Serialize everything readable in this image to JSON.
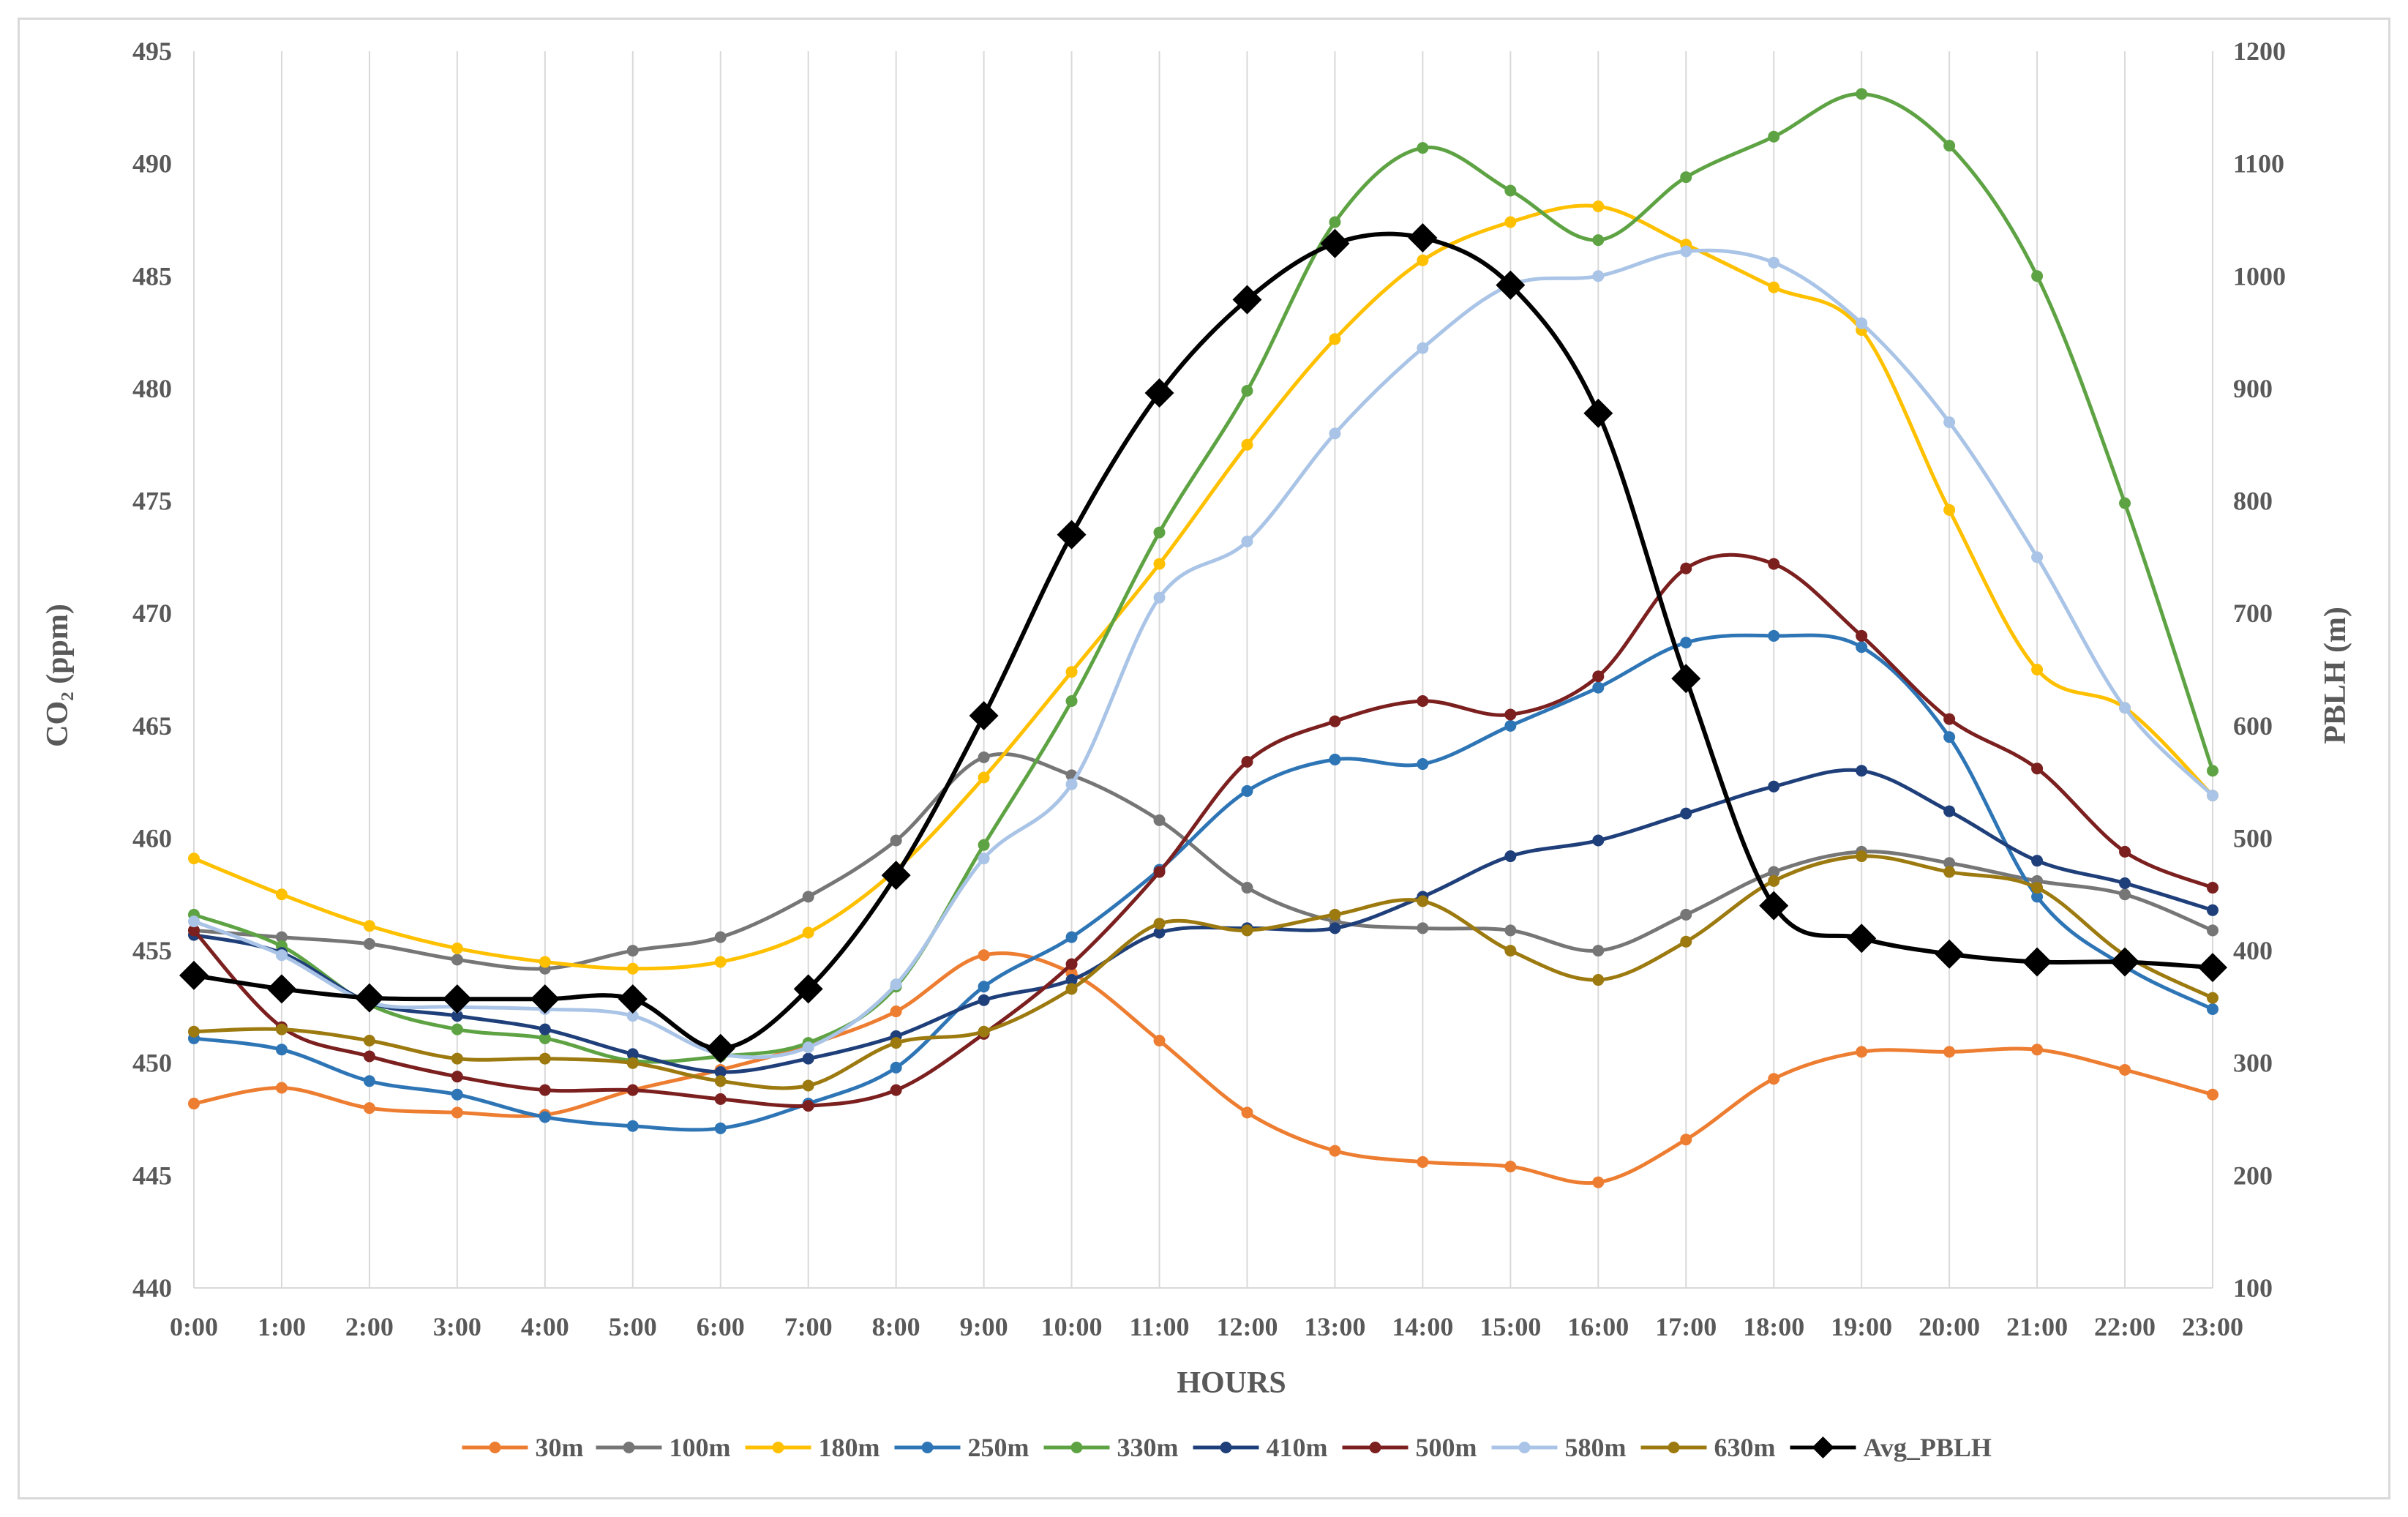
{
  "chart_data": {
    "type": "line",
    "title": "",
    "xlabel": "HOURS",
    "ylabel": "CO₂ (ppm)",
    "y2label": "PBLH (m)",
    "categories": [
      "0:00",
      "1:00",
      "2:00",
      "3:00",
      "4:00",
      "5:00",
      "6:00",
      "7:00",
      "8:00",
      "9:00",
      "10:00",
      "11:00",
      "12:00",
      "13:00",
      "14:00",
      "15:00",
      "16:00",
      "17:00",
      "18:00",
      "19:00",
      "20:00",
      "21:00",
      "22:00",
      "23:00"
    ],
    "ylim": [
      440,
      495
    ],
    "yticks": [
      440,
      445,
      450,
      455,
      460,
      465,
      470,
      475,
      480,
      485,
      490,
      495
    ],
    "y2lim": [
      100,
      1200
    ],
    "y2ticks": [
      100,
      200,
      300,
      400,
      500,
      600,
      700,
      800,
      900,
      1000,
      1100,
      1200
    ],
    "grid": "vertical",
    "legend_position": "bottom",
    "series": [
      {
        "name": "30m",
        "axis": "left",
        "color": "#ed7d31",
        "marker": "circle",
        "values": [
          448.2,
          448.9,
          448.0,
          447.8,
          447.7,
          448.8,
          449.7,
          450.8,
          452.3,
          454.8,
          454.0,
          451.0,
          447.8,
          446.1,
          445.6,
          445.4,
          444.7,
          446.6,
          449.3,
          450.5,
          450.5,
          450.6,
          449.7,
          448.6
        ]
      },
      {
        "name": "100m",
        "axis": "left",
        "color": "#767676",
        "marker": "circle",
        "values": [
          455.9,
          455.6,
          455.3,
          454.6,
          454.2,
          455.0,
          455.6,
          457.4,
          459.9,
          463.6,
          462.8,
          460.8,
          457.8,
          456.3,
          456.0,
          455.9,
          455.0,
          456.6,
          458.5,
          459.4,
          458.9,
          458.1,
          457.5,
          455.9
        ]
      },
      {
        "name": "180m",
        "axis": "left",
        "color": "#ffc000",
        "marker": "circle",
        "values": [
          459.1,
          457.5,
          456.1,
          455.1,
          454.5,
          454.2,
          454.5,
          455.8,
          458.6,
          462.7,
          467.4,
          472.2,
          477.5,
          482.2,
          485.7,
          487.4,
          488.1,
          486.4,
          484.5,
          482.6,
          474.6,
          467.5,
          465.8,
          461.9
        ]
      },
      {
        "name": "250m",
        "axis": "left",
        "color": "#2e75b6",
        "marker": "circle",
        "values": [
          451.1,
          450.6,
          449.2,
          448.6,
          447.6,
          447.2,
          447.1,
          448.2,
          449.8,
          453.4,
          455.6,
          458.6,
          462.1,
          463.5,
          463.3,
          465.0,
          466.7,
          468.7,
          469.0,
          468.5,
          464.5,
          457.4,
          454.3,
          452.4
        ]
      },
      {
        "name": "330m",
        "axis": "left",
        "color": "#5ea343",
        "marker": "circle",
        "values": [
          456.6,
          455.2,
          452.6,
          451.5,
          451.1,
          450.1,
          450.3,
          450.9,
          453.4,
          459.7,
          466.1,
          473.6,
          479.9,
          487.4,
          490.7,
          488.8,
          486.6,
          489.4,
          491.2,
          493.1,
          490.8,
          485.0,
          474.9,
          463.0
        ]
      },
      {
        "name": "410m",
        "axis": "left",
        "color": "#1f3f7a",
        "marker": "circle",
        "values": [
          455.7,
          454.9,
          452.7,
          452.1,
          451.5,
          450.4,
          449.6,
          450.2,
          451.2,
          452.8,
          453.7,
          455.8,
          456.0,
          456.0,
          457.4,
          459.2,
          459.9,
          461.1,
          462.3,
          463.0,
          461.2,
          459.0,
          458.0,
          456.8
        ]
      },
      {
        "name": "500m",
        "axis": "left",
        "color": "#7b1f1f",
        "marker": "circle",
        "values": [
          455.9,
          451.6,
          450.3,
          449.4,
          448.8,
          448.8,
          448.4,
          448.1,
          448.8,
          451.3,
          454.4,
          458.5,
          463.4,
          465.2,
          466.1,
          465.5,
          467.2,
          472.0,
          472.2,
          469.0,
          465.3,
          463.1,
          459.4,
          457.8
        ]
      },
      {
        "name": "580m",
        "axis": "left",
        "color": "#a9c4e6",
        "marker": "circle",
        "values": [
          456.3,
          454.8,
          452.7,
          452.5,
          452.4,
          452.1,
          450.4,
          450.7,
          453.5,
          459.1,
          462.4,
          470.7,
          473.2,
          478.0,
          481.8,
          484.6,
          485.0,
          486.1,
          485.6,
          482.9,
          478.5,
          472.5,
          465.8,
          461.9
        ]
      },
      {
        "name": "630m",
        "axis": "left",
        "color": "#9c7a0f",
        "marker": "circle",
        "values": [
          451.4,
          451.5,
          451.0,
          450.2,
          450.2,
          450.0,
          449.2,
          449.0,
          450.9,
          451.4,
          453.3,
          456.2,
          455.9,
          456.6,
          457.2,
          455.0,
          453.7,
          455.4,
          458.1,
          459.2,
          458.5,
          457.8,
          454.8,
          452.9
        ]
      },
      {
        "name": "Avg_PBLH",
        "axis": "right",
        "color": "#000000",
        "marker": "diamond",
        "values": [
          378,
          366,
          358,
          357,
          357,
          357,
          313,
          366,
          467,
          609,
          770,
          896,
          979,
          1029,
          1034,
          992,
          878,
          642,
          440,
          411,
          397,
          390,
          390,
          385
        ]
      }
    ]
  }
}
